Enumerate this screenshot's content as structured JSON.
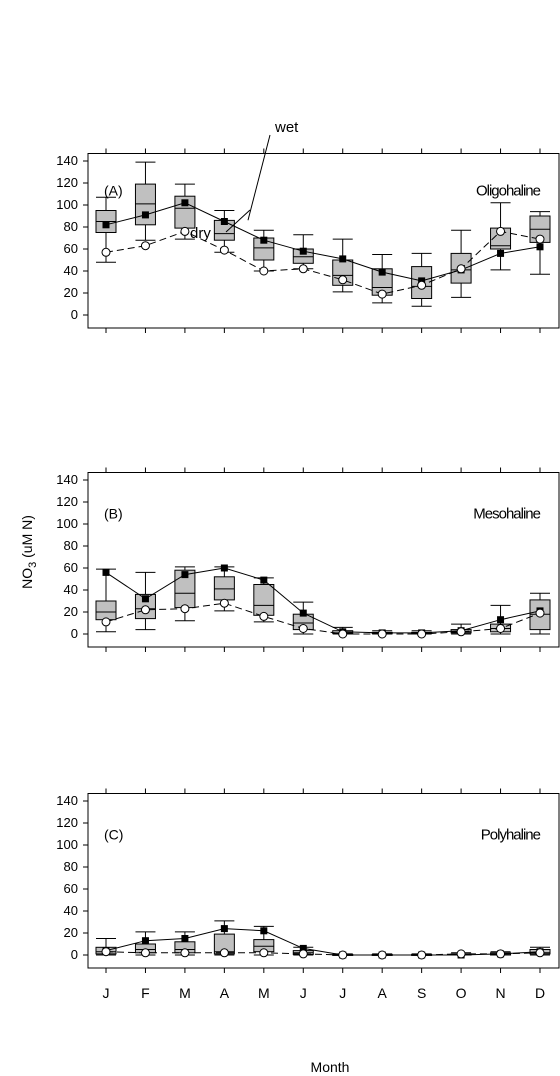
{
  "chart_data": [
    {
      "type": "box",
      "panel_label": "(A)",
      "title": "Oligohaline",
      "xlabel": "Month",
      "ylabel": "NO3 (uM N)",
      "ylim": [
        -10,
        145
      ],
      "yticks": [
        0,
        20,
        40,
        60,
        80,
        100,
        120,
        140
      ],
      "categories": [
        "J",
        "F",
        "M",
        "A",
        "M",
        "J",
        "J",
        "A",
        "S",
        "O",
        "N",
        "D"
      ],
      "boxes": [
        {
          "whisker_low": 48,
          "q1": 75,
          "median": 85,
          "q3": 95,
          "whisker_high": 107
        },
        {
          "whisker_low": 68,
          "q1": 82,
          "median": 101,
          "q3": 119,
          "whisker_high": 139
        },
        {
          "whisker_low": 69,
          "q1": 79,
          "median": 97,
          "q3": 108,
          "whisker_high": 119
        },
        {
          "whisker_low": 57,
          "q1": 68,
          "median": 74,
          "q3": 86,
          "whisker_high": 95
        },
        {
          "whisker_low": 40,
          "q1": 50,
          "median": 61,
          "q3": 70,
          "whisker_high": 77
        },
        {
          "whisker_low": 42,
          "q1": 47,
          "median": 53,
          "q3": 60,
          "whisker_high": 73
        },
        {
          "whisker_low": 21,
          "q1": 27,
          "median": 36,
          "q3": 50,
          "whisker_high": 69
        },
        {
          "whisker_low": 11,
          "q1": 18,
          "median": 25,
          "q3": 42,
          "whisker_high": 55
        },
        {
          "whisker_low": 8,
          "q1": 15,
          "median": 26,
          "q3": 44,
          "whisker_high": 56
        },
        {
          "whisker_low": 16,
          "q1": 29,
          "median": 41,
          "q3": 56,
          "whisker_high": 77
        },
        {
          "whisker_low": 41,
          "q1": 60,
          "median": 63,
          "q3": 79,
          "whisker_high": 102
        },
        {
          "whisker_low": 37,
          "q1": 66,
          "median": 78,
          "q3": 90,
          "whisker_high": 94
        }
      ],
      "series": [
        {
          "name": "wet",
          "marker": "filled-square",
          "line": "solid",
          "values": [
            82,
            91,
            102,
            85,
            68,
            58,
            51,
            39,
            31,
            41,
            56,
            62
          ]
        },
        {
          "name": "dry",
          "marker": "open-circle",
          "line": "dashed",
          "values": [
            57,
            63,
            76,
            59,
            40,
            42,
            32,
            19,
            27,
            42,
            76,
            69
          ]
        }
      ],
      "annotations": [
        {
          "text": "wet"
        },
        {
          "text": "dry"
        }
      ]
    },
    {
      "type": "box",
      "panel_label": "(B)",
      "title": "Mesohaline",
      "ylim": [
        -10,
        145
      ],
      "yticks": [
        0,
        20,
        40,
        60,
        80,
        100,
        120,
        140
      ],
      "categories": [
        "J",
        "F",
        "M",
        "A",
        "M",
        "J",
        "J",
        "A",
        "S",
        "O",
        "N",
        "D"
      ],
      "boxes": [
        {
          "whisker_low": 2,
          "q1": 13,
          "median": 20,
          "q3": 30,
          "whisker_high": 59
        },
        {
          "whisker_low": 4,
          "q1": 14,
          "median": 23,
          "q3": 36,
          "whisker_high": 56
        },
        {
          "whisker_low": 12,
          "q1": 24,
          "median": 37,
          "q3": 58,
          "whisker_high": 61
        },
        {
          "whisker_low": 21,
          "q1": 31,
          "median": 41,
          "q3": 52,
          "whisker_high": 61
        },
        {
          "whisker_low": 11,
          "q1": 17,
          "median": 26,
          "q3": 45,
          "whisker_high": 51
        },
        {
          "whisker_low": 0,
          "q1": 4,
          "median": 10,
          "q3": 18,
          "whisker_high": 29
        },
        {
          "whisker_low": 0,
          "q1": 0.5,
          "median": 1,
          "q3": 3,
          "whisker_high": 6
        },
        {
          "whisker_low": 0,
          "q1": 0.5,
          "median": 1,
          "q3": 1.5,
          "whisker_high": 3
        },
        {
          "whisker_low": 0,
          "q1": 0.5,
          "median": 1,
          "q3": 1.5,
          "whisker_high": 3
        },
        {
          "whisker_low": 0,
          "q1": 1,
          "median": 2,
          "q3": 4,
          "whisker_high": 9
        },
        {
          "whisker_low": 0,
          "q1": 2,
          "median": 5,
          "q3": 9,
          "whisker_high": 26
        },
        {
          "whisker_low": 0,
          "q1": 4,
          "median": 18,
          "q3": 31,
          "whisker_high": 37
        }
      ],
      "series": [
        {
          "name": "wet",
          "marker": "filled-square",
          "line": "solid",
          "values": [
            56,
            32,
            54,
            60,
            49,
            19,
            2,
            1,
            1,
            3,
            13,
            21
          ]
        },
        {
          "name": "dry",
          "marker": "open-circle",
          "line": "dashed",
          "values": [
            11,
            22,
            23,
            28,
            16,
            5,
            0,
            0,
            0,
            2,
            5,
            19
          ]
        }
      ]
    },
    {
      "type": "box",
      "panel_label": "(C)",
      "title": "Polyhaline",
      "ylim": [
        -10,
        145
      ],
      "yticks": [
        0,
        20,
        40,
        60,
        80,
        100,
        120,
        140
      ],
      "categories": [
        "J",
        "F",
        "M",
        "A",
        "M",
        "J",
        "J",
        "A",
        "S",
        "O",
        "N",
        "D"
      ],
      "boxes": [
        {
          "whisker_low": 0,
          "q1": 1,
          "median": 3,
          "q3": 7,
          "whisker_high": 15
        },
        {
          "whisker_low": 0,
          "q1": 2,
          "median": 5,
          "q3": 10,
          "whisker_high": 21
        },
        {
          "whisker_low": 0,
          "q1": 2,
          "median": 5,
          "q3": 12,
          "whisker_high": 21
        },
        {
          "whisker_low": 0,
          "q1": 1,
          "median": 3,
          "q3": 19,
          "whisker_high": 31
        },
        {
          "whisker_low": 0,
          "q1": 3,
          "median": 8,
          "q3": 14,
          "whisker_high": 26
        },
        {
          "whisker_low": 0,
          "q1": 0.5,
          "median": 2,
          "q3": 4,
          "whisker_high": 7
        },
        {
          "whisker_low": 0,
          "q1": 0,
          "median": 0,
          "q3": 0.5,
          "whisker_high": 1
        },
        {
          "whisker_low": 0,
          "q1": 0,
          "median": 0,
          "q3": 0.5,
          "whisker_high": 1
        },
        {
          "whisker_low": 0,
          "q1": 0,
          "median": 0,
          "q3": 0.5,
          "whisker_high": 1
        },
        {
          "whisker_low": 0,
          "q1": 0,
          "median": 0.5,
          "q3": 1,
          "whisker_high": 2
        },
        {
          "whisker_low": 0,
          "q1": 0,
          "median": 1,
          "q3": 2,
          "whisker_high": 3
        },
        {
          "whisker_low": 0,
          "q1": 1,
          "median": 2,
          "q3": 5,
          "whisker_high": 7
        }
      ],
      "series": [
        {
          "name": "wet",
          "marker": "filled-square",
          "line": "solid",
          "values": [
            4,
            13,
            15,
            24,
            22,
            6,
            0,
            0,
            0,
            0,
            1,
            3
          ]
        },
        {
          "name": "dry",
          "marker": "open-circle",
          "line": "dashed",
          "values": [
            3,
            2,
            2,
            2,
            2,
            1,
            0,
            0,
            0,
            1,
            1,
            2
          ]
        }
      ]
    }
  ],
  "ylabel_main": "NO",
  "ylabel_sub": "3",
  "ylabel_rest": " (uM N)",
  "xlabel": "Month",
  "colors": {
    "box_fill": "#c0c0c0",
    "line": "#000000"
  }
}
